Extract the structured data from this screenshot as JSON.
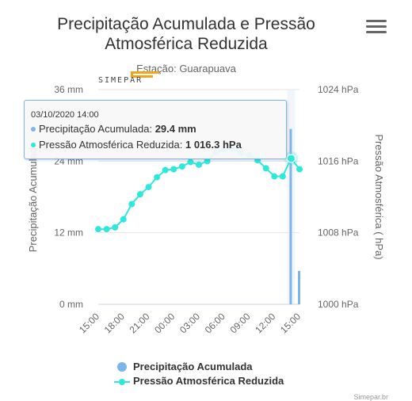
{
  "chart_data": {
    "type": "bar+line",
    "title": "Precipitação Acumulada e Pressão Atmosférica Reduzida",
    "subtitle": "Estação: Guarapuava",
    "logo_text": "SIMEPAR",
    "x_tick_labels": [
      "15:00",
      "18:00",
      "21:00",
      "00:00",
      "03:00",
      "06:00",
      "09:00",
      "12:00",
      "15:00"
    ],
    "y_left": {
      "label": "Precipitação Acumulada",
      "ticks": [
        "0 mm",
        "12 mm",
        "24 mm",
        "36 mm"
      ],
      "range": [
        0,
        36
      ]
    },
    "y_right": {
      "label": "Pressão Atmosférica ( hPa)",
      "ticks": [
        "1000 hPa",
        "1008 hPa",
        "1016 hPa",
        "1024 hPa"
      ],
      "range": [
        1000,
        1024
      ]
    },
    "x_range_hours": [
      0,
      24
    ],
    "series": [
      {
        "name": "Precipitação Acumulada",
        "type": "bar",
        "color": "#7cb5ec",
        "points": [
          {
            "hour": 23,
            "value": 29.4
          },
          {
            "hour": 24,
            "value": 5.6
          }
        ]
      },
      {
        "name": "Pressão Atmosférica Reduzida",
        "type": "line",
        "color": "#2ee8d9",
        "points": [
          {
            "hour": 0,
            "value": 1008.4
          },
          {
            "hour": 1,
            "value": 1008.4
          },
          {
            "hour": 2,
            "value": 1008.6
          },
          {
            "hour": 3,
            "value": 1009.5
          },
          {
            "hour": 4,
            "value": 1011.2
          },
          {
            "hour": 5,
            "value": 1012.3
          },
          {
            "hour": 6,
            "value": 1013.1
          },
          {
            "hour": 7,
            "value": 1014.2
          },
          {
            "hour": 8,
            "value": 1015.0
          },
          {
            "hour": 9,
            "value": 1015.1
          },
          {
            "hour": 10,
            "value": 1015.4
          },
          {
            "hour": 11,
            "value": 1015.9
          },
          {
            "hour": 12,
            "value": 1015.6
          },
          {
            "hour": 13,
            "value": 1016.0
          },
          {
            "hour": 14,
            "value": 1017.0
          },
          {
            "hour": 15,
            "value": 1017.3
          },
          {
            "hour": 16,
            "value": 1017.4
          },
          {
            "hour": 17,
            "value": 1016.9
          },
          {
            "hour": 18,
            "value": 1016.7
          },
          {
            "hour": 19,
            "value": 1016.1
          },
          {
            "hour": 20,
            "value": 1015.2
          },
          {
            "hour": 21,
            "value": 1014.3
          },
          {
            "hour": 22,
            "value": 1014.3
          },
          {
            "hour": 23,
            "value": 1016.3
          },
          {
            "hour": 24,
            "value": 1015.1
          }
        ]
      }
    ],
    "highlight_hour": 23,
    "tooltip": {
      "header": "03/10/2020 14:00",
      "rows": [
        {
          "label": "Precipitação Acumulada: ",
          "value": "29.4 mm"
        },
        {
          "label": "Pressão Atmosférica Reduzida: ",
          "value": "1 016.3 hPa"
        }
      ]
    },
    "legend": {
      "placement": "bottom-center"
    },
    "credits": "Simepar.br"
  }
}
